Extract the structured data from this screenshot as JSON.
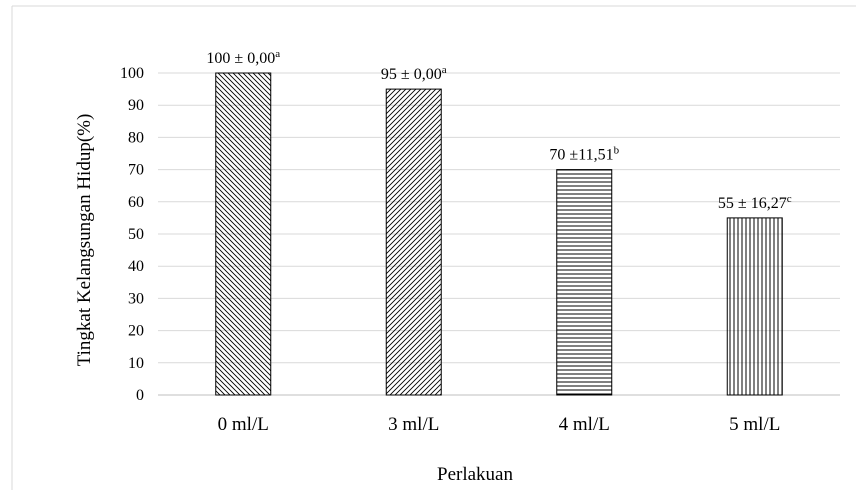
{
  "chart_data": {
    "type": "bar",
    "title": "",
    "xlabel": "Perlakuan",
    "ylabel": "Tingkat Kelangsungan Hidup(%)",
    "ylim": [
      0,
      100
    ],
    "yticks": [
      0,
      10,
      20,
      30,
      40,
      50,
      60,
      70,
      80,
      90,
      100
    ],
    "grid": "horizontal",
    "categories": [
      "0 ml/L",
      "3  ml/L",
      "4 ml/L",
      "5 ml/L"
    ],
    "values": [
      100,
      95,
      70,
      55
    ],
    "patterns": [
      "diagonal-backslash",
      "diagonal-slash",
      "horizontal-lines",
      "vertical-lines"
    ],
    "data_labels": [
      {
        "main": "100 ± 0,00",
        "sup": "a"
      },
      {
        "main": "95 ± 0,00",
        "sup": "a"
      },
      {
        "main": "70 ±11,51",
        "sup": "b"
      },
      {
        "main": "55 ± 16,27",
        "sup": "c"
      }
    ],
    "colors": {
      "bar_stroke": "#000000",
      "grid": "#d9d9d9",
      "frame": "#d9d9d9"
    }
  }
}
